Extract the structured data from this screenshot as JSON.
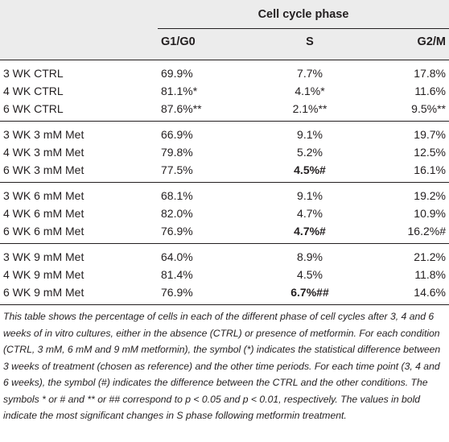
{
  "table": {
    "group_header": "Cell cycle phase",
    "columns": [
      "G1/G0",
      "S",
      "G2/M"
    ],
    "groups": [
      {
        "rows": [
          {
            "label": "3 WK CTRL",
            "g1": [
              {
                "t": "69.9%"
              }
            ],
            "s": [
              {
                "t": "7.7%"
              }
            ],
            "g2": [
              {
                "t": "17.8%"
              }
            ]
          },
          {
            "label": "4 WK CTRL",
            "g1": [
              {
                "t": "81.1%"
              },
              {
                "t": "*",
                "mark": true
              }
            ],
            "s": [
              {
                "t": "4.1%"
              },
              {
                "t": "*",
                "mark": true
              }
            ],
            "g2": [
              {
                "t": "11.6%"
              }
            ]
          },
          {
            "label": "6 WK CTRL",
            "g1": [
              {
                "t": "87.6%"
              },
              {
                "t": "**",
                "mark": true
              }
            ],
            "s": [
              {
                "t": "2.1%"
              },
              {
                "t": "**",
                "mark": true
              }
            ],
            "g2": [
              {
                "t": "9.5%"
              },
              {
                "t": "**",
                "mark": true
              }
            ]
          }
        ]
      },
      {
        "rows": [
          {
            "label": "3 WK 3 mM Met",
            "g1": [
              {
                "t": "66.9%"
              }
            ],
            "s": [
              {
                "t": "9.1%"
              }
            ],
            "g2": [
              {
                "t": "19.7%"
              }
            ]
          },
          {
            "label": "4 WK 3 mM Met",
            "g1": [
              {
                "t": "79.8%"
              }
            ],
            "s": [
              {
                "t": "5.2%"
              }
            ],
            "g2": [
              {
                "t": "12.5%"
              }
            ]
          },
          {
            "label": "6 WK 3 mM Met",
            "g1": [
              {
                "t": "77.5%"
              }
            ],
            "s": [
              {
                "t": "4.5%#",
                "bold": true
              }
            ],
            "g2": [
              {
                "t": "16.1%"
              }
            ]
          }
        ]
      },
      {
        "rows": [
          {
            "label": "3 WK 6 mM Met",
            "g1": [
              {
                "t": "68.1%"
              }
            ],
            "s": [
              {
                "t": "9.1%"
              }
            ],
            "g2": [
              {
                "t": "19.2%"
              }
            ]
          },
          {
            "label": "4 WK 6 mM Met",
            "g1": [
              {
                "t": "82.0%"
              }
            ],
            "s": [
              {
                "t": "4.7%"
              }
            ],
            "g2": [
              {
                "t": "10.9%"
              }
            ]
          },
          {
            "label": "6 WK 6 mM Met",
            "g1": [
              {
                "t": "76.9%"
              }
            ],
            "s": [
              {
                "t": "4.7%#",
                "bold": true
              }
            ],
            "g2": [
              {
                "t": "16.2%"
              },
              {
                "t": "#",
                "mark": true
              }
            ]
          }
        ]
      },
      {
        "rows": [
          {
            "label": "3 WK 9 mM Met",
            "g1": [
              {
                "t": "64.0%"
              }
            ],
            "s": [
              {
                "t": "8.9%"
              }
            ],
            "g2": [
              {
                "t": "21.2%"
              }
            ]
          },
          {
            "label": "4 WK 9 mM Met",
            "g1": [
              {
                "t": "81.4%"
              }
            ],
            "s": [
              {
                "t": "4.5%"
              }
            ],
            "g2": [
              {
                "t": "11.8%"
              }
            ]
          },
          {
            "label": "6 WK 9 mM Met",
            "g1": [
              {
                "t": "76.9%"
              }
            ],
            "s": [
              {
                "t": "6.7%##",
                "bold": true
              }
            ],
            "g2": [
              {
                "t": "14.6%"
              }
            ]
          }
        ]
      }
    ]
  },
  "footnote": "This table shows the percentage of cells in each of the different phase of cell cycles after 3, 4 and 6 weeks of in vitro cultures, either in the absence (CTRL) or presence of metformin. For each condition (CTRL, 3 mM, 6 mM and 9 mM metformin), the symbol (*) indicates the statistical difference between 3 weeks of treatment (chosen as reference) and the other time periods. For each time point (3, 4 and 6 weeks), the symbol (#) indicates the difference between the CTRL and the other conditions. The symbols * or # and ** or ## correspond to p < 0.05 and p < 0.01, respectively. The values in bold indicate the most significant changes in S phase following metformin treatment."
}
